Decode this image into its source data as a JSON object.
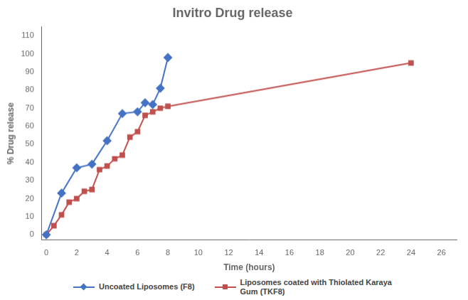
{
  "chart_data": {
    "type": "line",
    "title": "Invitro Drug release",
    "xlabel": "Time (hours)",
    "ylabel": "% Drug release",
    "series": [
      {
        "name": "Uncoated Liposomes (F8)",
        "color": "#4472C4",
        "marker": "diamond",
        "x": [
          0,
          1,
          2,
          3,
          4,
          5,
          6,
          6.5,
          7,
          7.5,
          8
        ],
        "values": [
          0,
          23,
          37,
          39,
          52,
          67,
          68,
          73,
          72,
          81,
          98
        ]
      },
      {
        "name": "Liposomes coated with Thiolated Karaya\nGum (TKF8)",
        "color": "#C0504D",
        "marker": "square",
        "x": [
          0,
          0.5,
          1,
          1.5,
          2,
          2.5,
          3,
          3.5,
          4,
          4.5,
          5,
          5.5,
          6,
          6.5,
          7,
          7.5,
          8,
          24
        ],
        "values": [
          0,
          5,
          11,
          18,
          20,
          24,
          25,
          36,
          38,
          42,
          44,
          54,
          57,
          66,
          68,
          70,
          71,
          95
        ]
      }
    ],
    "xlim": [
      -0.3,
      27
    ],
    "ylim": [
      -3,
      115
    ],
    "xticks": [
      0,
      2,
      4,
      6,
      8,
      10,
      12,
      14,
      16,
      18,
      20,
      22,
      24,
      26
    ],
    "yticks": [
      0,
      10,
      20,
      30,
      40,
      50,
      60,
      70,
      80,
      90,
      100,
      110
    ],
    "grid": false,
    "legend": "bottom"
  }
}
